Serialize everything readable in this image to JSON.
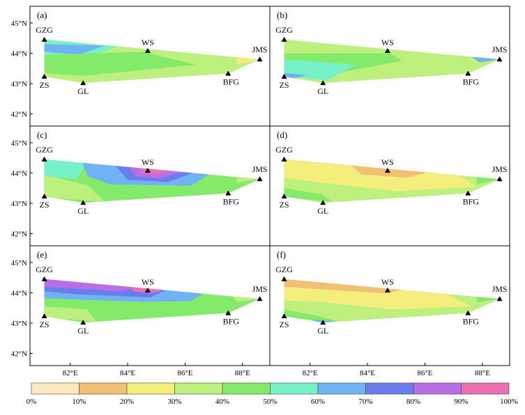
{
  "chart_data": {
    "type": "heatmap",
    "description_axes": {
      "x_ticks": [
        "82°E",
        "84°E",
        "86°E",
        "88°E"
      ],
      "y_ticks": [
        "42°N",
        "43°N",
        "44°N",
        "45°N"
      ],
      "lon_range": [
        80.6,
        88.95
      ],
      "lat_range": [
        41.6,
        45.55
      ]
    },
    "stations": [
      {
        "name": "GZG",
        "lon": 81.1,
        "lat": 44.45
      },
      {
        "name": "WS",
        "lon": 84.7,
        "lat": 44.08
      },
      {
        "name": "JMS",
        "lon": 88.6,
        "lat": 43.8
      },
      {
        "name": "BFG",
        "lon": 87.5,
        "lat": 43.33
      },
      {
        "name": "GL",
        "lon": 82.45,
        "lat": 43.02
      },
      {
        "name": "ZS",
        "lon": 81.1,
        "lat": 43.23
      }
    ],
    "panels": [
      {
        "label": "(a)",
        "base_class": 3,
        "zones": [
          {
            "poly": [
              [
                81.1,
                44.45
              ],
              [
                84.0,
                44.35
              ],
              [
                82.6,
                43.85
              ],
              [
                81.1,
                43.95
              ]
            ],
            "class": 5
          },
          {
            "poly": [
              [
                81.1,
                44.3
              ],
              [
                83.2,
                44.25
              ],
              [
                82.3,
                43.95
              ],
              [
                81.1,
                44.05
              ]
            ],
            "class": 6
          },
          {
            "poly": [
              [
                81.1,
                43.95
              ],
              [
                84.5,
                44.05
              ],
              [
                86.4,
                43.62
              ],
              [
                82.4,
                43.25
              ],
              [
                81.1,
                43.35
              ]
            ],
            "class": 4
          },
          {
            "poly": [
              [
                87.8,
                43.95
              ],
              [
                88.6,
                43.8
              ],
              [
                87.8,
                43.62
              ]
            ],
            "class": 2
          }
        ]
      },
      {
        "label": "(b)",
        "base_class": 3,
        "zones": [
          {
            "poly": [
              [
                81.1,
                44.0
              ],
              [
                84.8,
                44.0
              ],
              [
                85.2,
                43.75
              ],
              [
                82.6,
                43.28
              ],
              [
                81.1,
                43.4
              ]
            ],
            "class": 4
          },
          {
            "poly": [
              [
                81.1,
                43.8
              ],
              [
                83.6,
                43.62
              ],
              [
                82.6,
                43.1
              ],
              [
                81.1,
                43.25
              ]
            ],
            "class": 5
          },
          {
            "poly": [
              [
                81.1,
                43.35
              ],
              [
                81.9,
                43.28
              ],
              [
                81.1,
                43.1
              ]
            ],
            "class": 6
          },
          {
            "poly": [
              [
                87.6,
                43.9
              ],
              [
                88.6,
                43.8
              ],
              [
                87.9,
                43.7
              ]
            ],
            "class": 6
          }
        ]
      },
      {
        "label": "(c)",
        "base_class": 4,
        "zones": [
          {
            "poly": [
              [
                81.1,
                43.95
              ],
              [
                82.6,
                43.6
              ],
              [
                83.2,
                43.05
              ],
              [
                81.1,
                43.2
              ]
            ],
            "class": 3
          },
          {
            "poly": [
              [
                81.1,
                44.45
              ],
              [
                82.6,
                44.35
              ],
              [
                82.2,
                43.8
              ],
              [
                81.1,
                43.9
              ]
            ],
            "class": 5
          },
          {
            "poly": [
              [
                82.4,
                44.4
              ],
              [
                87.0,
                44.05
              ],
              [
                86.2,
                43.58
              ],
              [
                83.4,
                43.62
              ],
              [
                82.6,
                43.9
              ]
            ],
            "class": 6
          },
          {
            "poly": [
              [
                83.5,
                44.33
              ],
              [
                86.3,
                44.02
              ],
              [
                85.4,
                43.7
              ],
              [
                84.0,
                43.78
              ]
            ],
            "class": 7
          },
          {
            "poly": [
              [
                84.0,
                44.27
              ],
              [
                85.9,
                44.03
              ],
              [
                85.1,
                43.82
              ],
              [
                84.3,
                43.88
              ]
            ],
            "class": 8
          },
          {
            "poly": [
              [
                84.4,
                44.2
              ],
              [
                85.5,
                44.05
              ],
              [
                84.9,
                43.96
              ],
              [
                84.5,
                43.98
              ]
            ],
            "class": 9
          },
          {
            "poly": [
              [
                87.8,
                43.95
              ],
              [
                88.6,
                43.8
              ],
              [
                87.8,
                43.68
              ]
            ],
            "class": 3
          }
        ]
      },
      {
        "label": "(d)",
        "base_class": 3,
        "zones": [
          {
            "poly": [
              [
                81.1,
                44.45
              ],
              [
                87.0,
                44.05
              ],
              [
                87.8,
                43.55
              ],
              [
                85.0,
                43.4
              ],
              [
                82.3,
                43.7
              ],
              [
                81.1,
                43.85
              ]
            ],
            "class": 2
          },
          {
            "poly": [
              [
                83.3,
                44.35
              ],
              [
                86.2,
                44.05
              ],
              [
                85.4,
                43.85
              ],
              [
                83.8,
                43.95
              ]
            ],
            "class": 1
          },
          {
            "poly": [
              [
                81.1,
                43.5
              ],
              [
                82.4,
                43.3
              ],
              [
                82.8,
                43.05
              ],
              [
                81.1,
                43.2
              ]
            ],
            "class": 4
          },
          {
            "poly": [
              [
                87.8,
                43.95
              ],
              [
                88.6,
                43.8
              ],
              [
                87.8,
                43.62
              ]
            ],
            "class": 4
          }
        ]
      },
      {
        "label": "(e)",
        "base_class": 4,
        "zones": [
          {
            "poly": [
              [
                81.1,
                43.55
              ],
              [
                82.6,
                43.45
              ],
              [
                82.9,
                43.05
              ],
              [
                81.1,
                43.2
              ]
            ],
            "class": 3
          },
          {
            "poly": [
              [
                81.1,
                44.45
              ],
              [
                86.8,
                44.07
              ],
              [
                86.2,
                43.72
              ],
              [
                84.5,
                43.7
              ],
              [
                81.1,
                43.82
              ]
            ],
            "class": 6
          },
          {
            "poly": [
              [
                81.1,
                44.45
              ],
              [
                85.4,
                44.12
              ],
              [
                84.8,
                43.85
              ],
              [
                82.2,
                43.95
              ],
              [
                81.1,
                44.05
              ]
            ],
            "class": 7
          },
          {
            "poly": [
              [
                81.1,
                44.45
              ],
              [
                84.6,
                44.22
              ],
              [
                83.8,
                44.05
              ],
              [
                81.1,
                44.2
              ]
            ],
            "class": 8
          },
          {
            "poly": [
              [
                84.1,
                44.25
              ],
              [
                85.4,
                44.12
              ],
              [
                84.8,
                43.98
              ],
              [
                84.2,
                44.05
              ]
            ],
            "class": 9
          },
          {
            "poly": [
              [
                87.6,
                43.92
              ],
              [
                88.6,
                43.8
              ],
              [
                87.8,
                43.7
              ]
            ],
            "class": 3
          }
        ]
      },
      {
        "label": "(f)",
        "base_class": 3,
        "zones": [
          {
            "poly": [
              [
                81.1,
                44.45
              ],
              [
                86.5,
                44.1
              ],
              [
                87.6,
                43.55
              ],
              [
                84.8,
                43.45
              ],
              [
                82.4,
                43.7
              ],
              [
                81.1,
                43.75
              ]
            ],
            "class": 2
          },
          {
            "poly": [
              [
                81.1,
                44.45
              ],
              [
                85.5,
                44.15
              ],
              [
                84.6,
                43.98
              ],
              [
                81.1,
                44.2
              ]
            ],
            "class": 1
          },
          {
            "poly": [
              [
                81.1,
                43.45
              ],
              [
                82.2,
                43.25
              ],
              [
                83.0,
                43.05
              ],
              [
                81.1,
                43.18
              ]
            ],
            "class": 4
          },
          {
            "poly": [
              [
                82.0,
                43.12
              ],
              [
                82.9,
                43.06
              ],
              [
                82.4,
                43.0
              ]
            ],
            "class": 6
          },
          {
            "poly": [
              [
                87.8,
                43.92
              ],
              [
                88.6,
                43.8
              ],
              [
                87.8,
                43.68
              ]
            ],
            "class": 4
          }
        ]
      }
    ],
    "legend": {
      "colors": [
        "#fde9c0",
        "#f1c073",
        "#f4ef7d",
        "#bdf07c",
        "#84eb6a",
        "#77f1c7",
        "#6fb3f5",
        "#6a7ded",
        "#b86ee6",
        "#ec6fb1"
      ],
      "labels": [
        "0%",
        "10%",
        "20%",
        "30%",
        "40%",
        "50%",
        "60%",
        "70%",
        "80%",
        "90%",
        "100%"
      ]
    }
  }
}
